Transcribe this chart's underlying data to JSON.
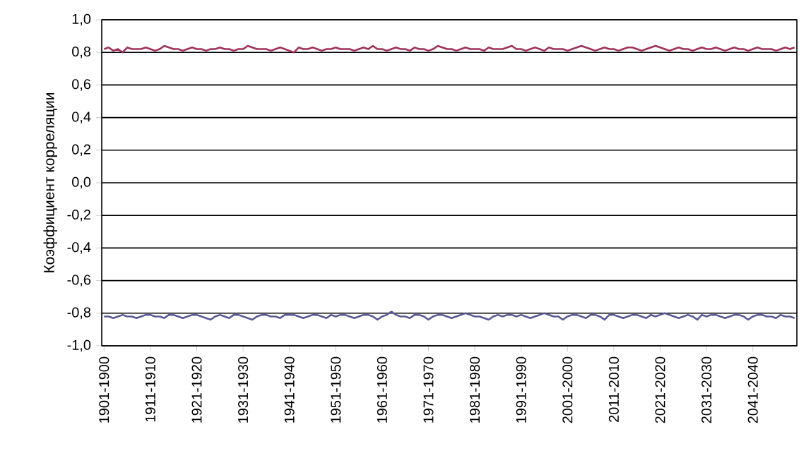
{
  "chart_data": {
    "type": "line",
    "ylabel": "Коэффициент корреляции",
    "categories": [
      "1901-1900",
      null,
      null,
      null,
      null,
      null,
      null,
      null,
      null,
      null,
      "1911-1910",
      null,
      null,
      null,
      null,
      null,
      null,
      null,
      null,
      null,
      "1921-1920",
      null,
      null,
      null,
      null,
      null,
      null,
      null,
      null,
      null,
      "1931-1930",
      null,
      null,
      null,
      null,
      null,
      null,
      null,
      null,
      null,
      "1941-1940",
      null,
      null,
      null,
      null,
      null,
      null,
      null,
      null,
      null,
      "1951-1950",
      null,
      null,
      null,
      null,
      null,
      null,
      null,
      null,
      null,
      "1961-1960",
      null,
      null,
      null,
      null,
      null,
      null,
      null,
      null,
      null,
      "1971-1970",
      null,
      null,
      null,
      null,
      null,
      null,
      null,
      null,
      null,
      "1981-1980",
      null,
      null,
      null,
      null,
      null,
      null,
      null,
      null,
      null,
      "1991-1990",
      null,
      null,
      null,
      null,
      null,
      null,
      null,
      null,
      null,
      "2001-2000",
      null,
      null,
      null,
      null,
      null,
      null,
      null,
      null,
      null,
      "2011-2010",
      null,
      null,
      null,
      null,
      null,
      null,
      null,
      null,
      null,
      "2021-2020",
      null,
      null,
      null,
      null,
      null,
      null,
      null,
      null,
      null,
      "2031-2030",
      null,
      null,
      null,
      null,
      null,
      null,
      null,
      null,
      null,
      "2041-2040",
      null,
      null,
      null,
      null,
      null,
      null,
      null,
      null,
      null
    ],
    "series": [
      {
        "color": "#a0305a",
        "values": [
          0.82,
          0.83,
          0.81,
          0.82,
          0.8,
          0.83,
          0.82,
          0.82,
          0.82,
          0.83,
          0.82,
          0.81,
          0.82,
          0.84,
          0.83,
          0.82,
          0.82,
          0.81,
          0.82,
          0.83,
          0.82,
          0.82,
          0.81,
          0.82,
          0.82,
          0.83,
          0.82,
          0.82,
          0.81,
          0.82,
          0.82,
          0.84,
          0.83,
          0.82,
          0.82,
          0.82,
          0.81,
          0.82,
          0.83,
          0.82,
          0.81,
          0.8,
          0.83,
          0.82,
          0.82,
          0.83,
          0.82,
          0.81,
          0.82,
          0.82,
          0.83,
          0.82,
          0.82,
          0.82,
          0.81,
          0.82,
          0.83,
          0.82,
          0.84,
          0.82,
          0.82,
          0.81,
          0.82,
          0.83,
          0.82,
          0.82,
          0.81,
          0.83,
          0.82,
          0.82,
          0.81,
          0.82,
          0.84,
          0.83,
          0.82,
          0.82,
          0.81,
          0.82,
          0.83,
          0.82,
          0.82,
          0.82,
          0.81,
          0.83,
          0.82,
          0.82,
          0.82,
          0.83,
          0.84,
          0.82,
          0.82,
          0.81,
          0.82,
          0.83,
          0.82,
          0.81,
          0.83,
          0.82,
          0.82,
          0.82,
          0.81,
          0.82,
          0.83,
          0.84,
          0.83,
          0.82,
          0.81,
          0.82,
          0.83,
          0.82,
          0.82,
          0.81,
          0.82,
          0.83,
          0.83,
          0.82,
          0.81,
          0.82,
          0.83,
          0.84,
          0.83,
          0.82,
          0.81,
          0.82,
          0.83,
          0.82,
          0.82,
          0.81,
          0.82,
          0.83,
          0.82,
          0.82,
          0.83,
          0.82,
          0.81,
          0.82,
          0.83,
          0.82,
          0.82,
          0.81,
          0.82,
          0.83,
          0.82,
          0.82,
          0.82,
          0.81,
          0.82,
          0.83,
          0.82,
          0.83
        ]
      },
      {
        "color": "#5a5a96",
        "values": [
          -0.82,
          -0.82,
          -0.83,
          -0.82,
          -0.81,
          -0.82,
          -0.82,
          -0.83,
          -0.82,
          -0.81,
          -0.81,
          -0.82,
          -0.82,
          -0.83,
          -0.81,
          -0.81,
          -0.82,
          -0.83,
          -0.82,
          -0.81,
          -0.81,
          -0.82,
          -0.83,
          -0.84,
          -0.82,
          -0.81,
          -0.82,
          -0.83,
          -0.81,
          -0.81,
          -0.82,
          -0.83,
          -0.84,
          -0.82,
          -0.81,
          -0.81,
          -0.82,
          -0.82,
          -0.83,
          -0.81,
          -0.81,
          -0.81,
          -0.82,
          -0.83,
          -0.82,
          -0.81,
          -0.81,
          -0.82,
          -0.83,
          -0.81,
          -0.82,
          -0.81,
          -0.81,
          -0.82,
          -0.83,
          -0.82,
          -0.81,
          -0.81,
          -0.82,
          -0.84,
          -0.82,
          -0.81,
          -0.79,
          -0.81,
          -0.82,
          -0.82,
          -0.83,
          -0.81,
          -0.81,
          -0.82,
          -0.84,
          -0.82,
          -0.81,
          -0.81,
          -0.82,
          -0.83,
          -0.82,
          -0.81,
          -0.8,
          -0.81,
          -0.82,
          -0.82,
          -0.83,
          -0.84,
          -0.82,
          -0.81,
          -0.82,
          -0.81,
          -0.81,
          -0.82,
          -0.81,
          -0.82,
          -0.83,
          -0.82,
          -0.81,
          -0.8,
          -0.81,
          -0.82,
          -0.82,
          -0.84,
          -0.82,
          -0.81,
          -0.81,
          -0.82,
          -0.83,
          -0.81,
          -0.81,
          -0.82,
          -0.84,
          -0.81,
          -0.81,
          -0.82,
          -0.83,
          -0.82,
          -0.81,
          -0.81,
          -0.82,
          -0.83,
          -0.81,
          -0.82,
          -0.81,
          -0.8,
          -0.81,
          -0.82,
          -0.83,
          -0.82,
          -0.81,
          -0.82,
          -0.84,
          -0.81,
          -0.82,
          -0.81,
          -0.81,
          -0.82,
          -0.83,
          -0.82,
          -0.81,
          -0.81,
          -0.82,
          -0.84,
          -0.82,
          -0.81,
          -0.81,
          -0.82,
          -0.82,
          -0.83,
          -0.81,
          -0.82,
          -0.82,
          -0.83
        ]
      }
    ],
    "ylim": [
      -1.0,
      1.0
    ],
    "yticks": [
      {
        "value": -1.0,
        "label": "-1,0"
      },
      {
        "value": -0.8,
        "label": "-0,8"
      },
      {
        "value": -0.6,
        "label": "-0,6"
      },
      {
        "value": -0.4,
        "label": "-0,4"
      },
      {
        "value": -0.2,
        "label": "-0,2"
      },
      {
        "value": 0.0,
        "label": "0,0"
      },
      {
        "value": 0.2,
        "label": "0,2"
      },
      {
        "value": 0.4,
        "label": "0,4"
      },
      {
        "value": 0.6,
        "label": "0,6"
      },
      {
        "value": 0.8,
        "label": "0,8"
      },
      {
        "value": 1.0,
        "label": "1,0"
      }
    ],
    "grid": "y",
    "marker": "none",
    "line_style": "solid"
  }
}
